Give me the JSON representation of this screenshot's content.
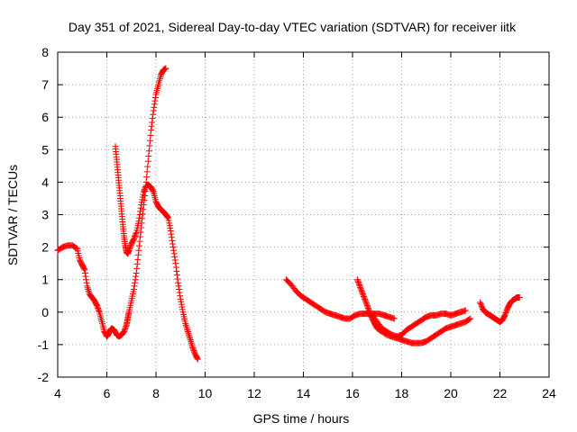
{
  "chart_data": {
    "type": "scatter",
    "title": "Day 351 of 2021, Sidereal Day-to-day VTEC variation (SDTVAR) for receiver iitk",
    "xlabel": "GPS time / hours",
    "ylabel": "SDTVAR / TECUs",
    "xlim": [
      4,
      24
    ],
    "ylim": [
      -2,
      8
    ],
    "xticks": [
      4,
      6,
      8,
      10,
      12,
      14,
      16,
      18,
      20,
      22,
      24
    ],
    "yticks": [
      -2,
      -1,
      0,
      1,
      2,
      3,
      4,
      5,
      6,
      7,
      8
    ],
    "grid": true,
    "marker": "+",
    "color": "#ff0000",
    "series": [
      {
        "name": "arc-1",
        "x": [
          4.0,
          4.2,
          4.4,
          4.6,
          4.8,
          4.9,
          5.0,
          5.1,
          5.2,
          5.3,
          5.4,
          5.5,
          5.6,
          5.7,
          5.8,
          5.9,
          6.0,
          6.05,
          6.1,
          6.2,
          6.3,
          6.4,
          6.5,
          6.6,
          6.7,
          6.8,
          6.85,
          6.9,
          7.0,
          7.1,
          7.2,
          7.3,
          7.4,
          7.5,
          7.6,
          7.7,
          7.8,
          7.9,
          8.0,
          8.1,
          8.2,
          8.3,
          8.4
        ],
        "y": [
          1.9,
          2.0,
          2.05,
          2.05,
          1.95,
          1.6,
          1.45,
          1.3,
          0.8,
          0.55,
          0.45,
          0.35,
          0.2,
          0.0,
          -0.3,
          -0.6,
          -0.75,
          -0.7,
          -0.6,
          -0.5,
          -0.55,
          -0.7,
          -0.75,
          -0.7,
          -0.6,
          -0.4,
          -0.2,
          0.0,
          0.35,
          0.7,
          1.2,
          1.9,
          2.6,
          3.3,
          4.0,
          4.8,
          5.6,
          6.2,
          6.7,
          7.0,
          7.3,
          7.45,
          7.5
        ]
      },
      {
        "name": "arc-2",
        "x": [
          6.35,
          6.4,
          6.45,
          6.5,
          6.55,
          6.6,
          6.65,
          6.7,
          6.75,
          6.8,
          6.85,
          6.9,
          7.0,
          7.1,
          7.2,
          7.3,
          7.4,
          7.5,
          7.6,
          7.7,
          7.8,
          7.9,
          8.0,
          8.1,
          8.2,
          8.3,
          8.4,
          8.5,
          8.6,
          8.7,
          8.8,
          8.9,
          9.0,
          9.1,
          9.2,
          9.3,
          9.4,
          9.5,
          9.6,
          9.7
        ],
        "y": [
          5.1,
          4.7,
          4.3,
          3.9,
          3.5,
          3.1,
          2.7,
          2.35,
          2.05,
          1.85,
          1.8,
          1.9,
          2.1,
          2.25,
          2.45,
          2.8,
          3.3,
          3.7,
          3.9,
          3.9,
          3.85,
          3.7,
          3.4,
          3.25,
          3.15,
          3.1,
          3.0,
          2.9,
          2.5,
          2.0,
          1.5,
          0.9,
          0.4,
          0.0,
          -0.35,
          -0.6,
          -0.85,
          -1.1,
          -1.3,
          -1.45
        ]
      },
      {
        "name": "arc-3",
        "x": [
          13.3,
          13.5,
          13.7,
          13.9,
          14.1,
          14.3,
          14.5,
          14.7,
          14.9,
          15.1,
          15.3,
          15.5,
          15.7,
          15.9,
          16.1,
          16.3,
          16.5,
          16.7,
          16.9,
          17.1,
          17.3,
          17.5,
          17.7
        ],
        "y": [
          1.0,
          0.85,
          0.65,
          0.5,
          0.4,
          0.3,
          0.2,
          0.1,
          0.0,
          -0.05,
          -0.1,
          -0.15,
          -0.2,
          -0.2,
          -0.1,
          -0.05,
          -0.05,
          -0.05,
          -0.05,
          -0.05,
          -0.1,
          -0.15,
          -0.2
        ]
      },
      {
        "name": "arc-4",
        "x": [
          16.2,
          16.3,
          16.4,
          16.5,
          16.6,
          16.7,
          16.8,
          16.9,
          17.0,
          17.2,
          17.4,
          17.6,
          17.8,
          18.0,
          18.2,
          18.4,
          18.6,
          18.8,
          19.0,
          19.2,
          19.4,
          19.6,
          19.8,
          20.0,
          20.2,
          20.4,
          20.6,
          20.8
        ],
        "y": [
          1.0,
          0.8,
          0.6,
          0.4,
          0.2,
          0.0,
          -0.2,
          -0.35,
          -0.5,
          -0.6,
          -0.7,
          -0.75,
          -0.8,
          -0.85,
          -0.9,
          -0.95,
          -0.95,
          -0.95,
          -0.9,
          -0.8,
          -0.7,
          -0.6,
          -0.5,
          -0.45,
          -0.4,
          -0.35,
          -0.3,
          -0.2
        ]
      },
      {
        "name": "arc-5",
        "x": [
          16.6,
          16.8,
          17.0,
          17.2,
          17.4,
          17.6,
          17.8,
          18.0,
          18.2,
          18.4,
          18.6,
          18.8,
          19.0,
          19.2,
          19.4,
          19.6,
          19.8,
          20.0,
          20.2,
          20.4,
          20.6
        ],
        "y": [
          0.0,
          -0.1,
          -0.3,
          -0.5,
          -0.6,
          -0.7,
          -0.75,
          -0.7,
          -0.55,
          -0.45,
          -0.35,
          -0.25,
          -0.15,
          -0.1,
          -0.1,
          -0.05,
          -0.05,
          -0.1,
          -0.05,
          0.0,
          0.05
        ]
      },
      {
        "name": "arc-6",
        "x": [
          21.2,
          21.3,
          21.4,
          21.5,
          21.6,
          21.7,
          21.8,
          21.9,
          22.0,
          22.1,
          22.2,
          22.3,
          22.4,
          22.5,
          22.6,
          22.7,
          22.8
        ],
        "y": [
          0.3,
          0.1,
          0.0,
          -0.05,
          -0.1,
          -0.15,
          -0.2,
          -0.25,
          -0.3,
          -0.25,
          -0.1,
          0.1,
          0.25,
          0.35,
          0.4,
          0.45,
          0.45
        ]
      }
    ]
  }
}
